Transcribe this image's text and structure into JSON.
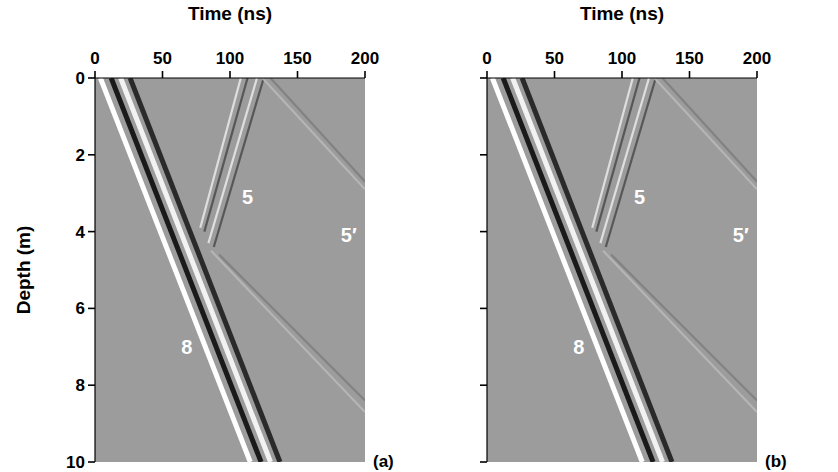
{
  "chart_data": [
    {
      "type": "line",
      "label": "(a)",
      "xlabel": "Time (ns)",
      "ylabel": "Depth (m)",
      "xlim": [
        0,
        200
      ],
      "xticks": [
        0,
        50,
        100,
        150,
        200
      ],
      "ylim": [
        10,
        0
      ],
      "yticks": [
        0,
        2,
        4,
        6,
        8,
        10
      ],
      "tick_labels": true,
      "series": [
        {
          "color": "#ffffff",
          "x": [
            4,
            115
          ],
          "values": [
            0,
            10
          ]
        },
        {
          "color": "#1a1a1a",
          "x": [
            12,
            123
          ],
          "values": [
            0,
            10
          ]
        },
        {
          "color": "#f2f2f2",
          "x": [
            19,
            130
          ],
          "values": [
            0,
            10
          ]
        },
        {
          "color": "#2a2a2a",
          "x": [
            26,
            137
          ],
          "values": [
            0,
            10
          ]
        },
        {
          "color": "#e6e6e6",
          "x": [
            108,
            78
          ],
          "values": [
            0,
            3.9
          ]
        },
        {
          "color": "#505050",
          "x": [
            113,
            81
          ],
          "values": [
            0,
            4.0
          ]
        },
        {
          "color": "#e6e6e6",
          "x": [
            120,
            84
          ],
          "values": [
            0,
            4.3
          ]
        },
        {
          "color": "#505050",
          "x": [
            125,
            88
          ],
          "values": [
            0,
            4.4
          ]
        },
        {
          "color": "#b8b8b8",
          "x": [
            86,
            200
          ],
          "values": [
            4.5,
            8.7
          ]
        },
        {
          "color": "#808080",
          "x": [
            92,
            200
          ],
          "values": [
            4.6,
            8.4
          ]
        },
        {
          "color": "#b8b8b8",
          "x": [
            124,
            200
          ],
          "values": [
            0,
            2.9
          ]
        },
        {
          "color": "#808080",
          "x": [
            130,
            200
          ],
          "values": [
            0,
            2.7
          ]
        }
      ],
      "annotations": [
        {
          "text": "5",
          "x": 113,
          "y": 3.1
        },
        {
          "text": "5′",
          "x": 188,
          "y": 4.1
        },
        {
          "text": "8",
          "x": 68,
          "y": 7.0
        }
      ]
    },
    {
      "type": "line",
      "label": "(b)",
      "xlabel": "Time (ns)",
      "xlim": [
        0,
        200
      ],
      "xticks": [
        0,
        50,
        100,
        150,
        200
      ],
      "ylim": [
        10,
        0
      ],
      "yticks": [
        0,
        2,
        4,
        6,
        8,
        10
      ],
      "tick_labels": "x",
      "series": [
        {
          "color": "#ffffff",
          "x": [
            4,
            115
          ],
          "values": [
            0,
            10
          ]
        },
        {
          "color": "#1a1a1a",
          "x": [
            12,
            123
          ],
          "values": [
            0,
            10
          ]
        },
        {
          "color": "#f2f2f2",
          "x": [
            19,
            130
          ],
          "values": [
            0,
            10
          ]
        },
        {
          "color": "#2a2a2a",
          "x": [
            26,
            137
          ],
          "values": [
            0,
            10
          ]
        },
        {
          "color": "#e6e6e6",
          "x": [
            108,
            78
          ],
          "values": [
            0,
            3.9
          ]
        },
        {
          "color": "#505050",
          "x": [
            113,
            81
          ],
          "values": [
            0,
            4.0
          ]
        },
        {
          "color": "#e6e6e6",
          "x": [
            120,
            84
          ],
          "values": [
            0,
            4.3
          ]
        },
        {
          "color": "#505050",
          "x": [
            125,
            88
          ],
          "values": [
            0,
            4.4
          ]
        },
        {
          "color": "#b8b8b8",
          "x": [
            86,
            200
          ],
          "values": [
            4.5,
            8.7
          ]
        },
        {
          "color": "#808080",
          "x": [
            92,
            200
          ],
          "values": [
            4.6,
            8.4
          ]
        },
        {
          "color": "#b8b8b8",
          "x": [
            124,
            200
          ],
          "values": [
            0,
            2.9
          ]
        },
        {
          "color": "#808080",
          "x": [
            130,
            200
          ],
          "values": [
            0,
            2.7
          ]
        }
      ],
      "annotations": [
        {
          "text": "5",
          "x": 113,
          "y": 3.1
        },
        {
          "text": "5′",
          "x": 188,
          "y": 4.1
        },
        {
          "text": "8",
          "x": 68,
          "y": 7.0
        }
      ]
    }
  ]
}
